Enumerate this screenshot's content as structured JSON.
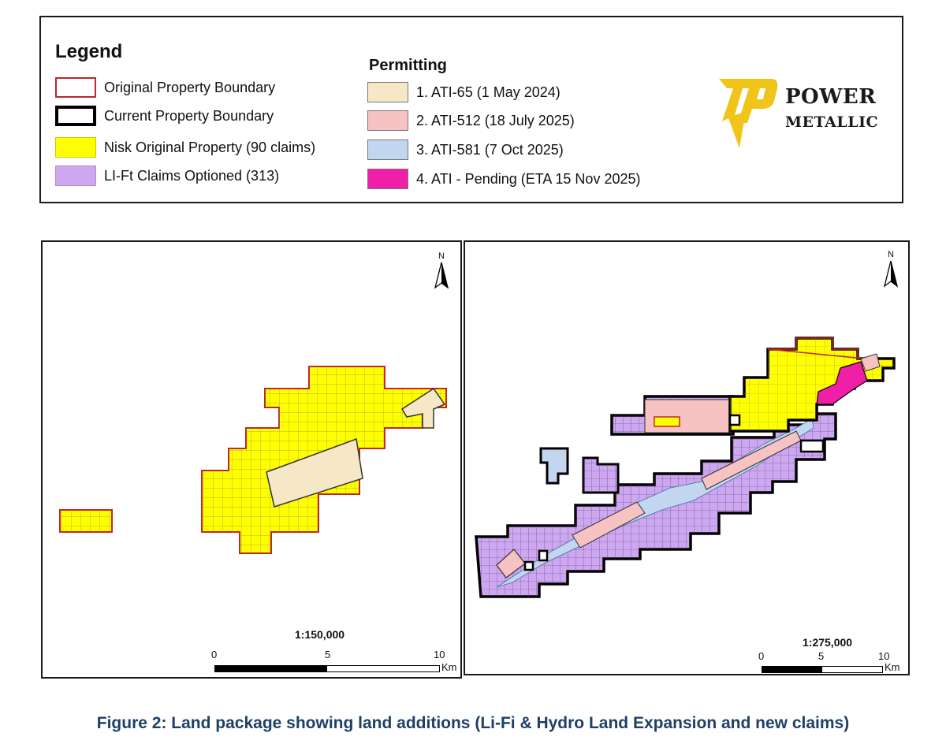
{
  "legend": {
    "title": "Legend",
    "items": [
      {
        "label": "Original Property Boundary",
        "swatch_fill": "#ffffff",
        "swatch_stroke": "#c0262a"
      },
      {
        "label": "Current Property Boundary",
        "swatch_fill": "#ffffff",
        "swatch_stroke": "#000000"
      },
      {
        "label": "Nisk Original Property (90 claims)",
        "swatch_fill": "#ffff00",
        "swatch_stroke": "#ffff00"
      },
      {
        "label": "LI-Ft Claims Optioned (313)",
        "swatch_fill": "#cda8f0",
        "swatch_stroke": "#cda8f0"
      }
    ]
  },
  "permitting": {
    "title": "Permitting",
    "items": [
      {
        "label": "1. ATI-65 (1 May 2024)",
        "color": "#f6e8c6"
      },
      {
        "label": "2. ATI-512 (18 July 2025)",
        "color": "#f6c2c2"
      },
      {
        "label": "3. ATI-581 (7 Oct 2025)",
        "color": "#c3d6f0"
      },
      {
        "label": "4. ATI - Pending (ETA 15 Nov 2025)",
        "color": "#f01fa8"
      }
    ]
  },
  "logo": {
    "line1": "POWER",
    "line2": "METALLIC",
    "icon": "power-metallic-lightning-logo",
    "color": "#f0c419"
  },
  "maps": [
    {
      "north_label": "N",
      "scale_text": "1:150,000",
      "ticks": [
        "0",
        "5",
        "10"
      ],
      "unit": "Km"
    },
    {
      "north_label": "N",
      "scale_text": "1:275,000",
      "ticks": [
        "0",
        "5",
        "10"
      ],
      "unit": "Km"
    }
  ],
  "caption": "Figure 2: Land package showing land additions (Li-Fi & Hydro Land Expansion and new claims)",
  "colors": {
    "nisk_yellow": "#ffff00",
    "lift_purple": "#cda8f0",
    "original_red": "#c0262a",
    "current_black": "#000000"
  }
}
